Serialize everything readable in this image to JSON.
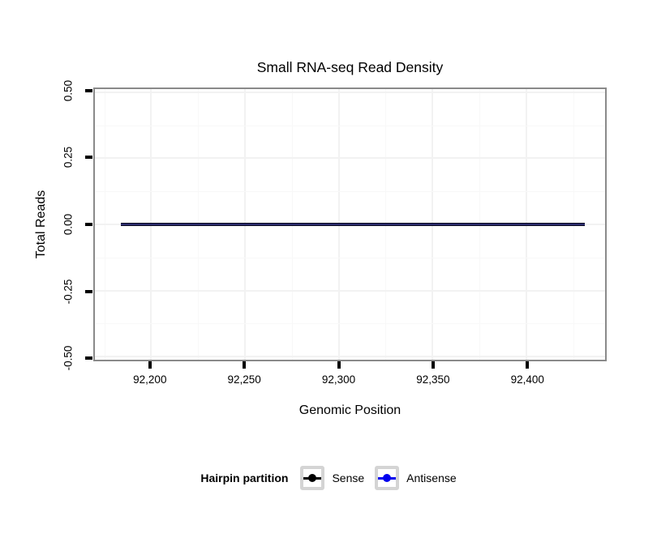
{
  "title": "Small RNA-seq Read Density",
  "chart_data": {
    "type": "line",
    "title": "Small RNA-seq Read Density",
    "xlabel": "Genomic Position",
    "ylabel": "Total Reads",
    "xlim": [
      92170,
      92442
    ],
    "ylim": [
      -0.512,
      0.512
    ],
    "x_ticks": [
      92200,
      92250,
      92300,
      92350,
      92400
    ],
    "x_tick_labels": [
      "92,200",
      "92,250",
      "92,300",
      "92,350",
      "92,400"
    ],
    "y_ticks": [
      0.5,
      0.25,
      0,
      -0.25,
      -0.5
    ],
    "y_tick_labels": [
      "0.50",
      "0.25",
      "0.00",
      "-0.25",
      "-0.50"
    ],
    "grid": {
      "major": true,
      "minor": true
    },
    "legend_position": "bottom",
    "series": [
      {
        "name": "Sense",
        "color": "#000000",
        "x": [
          92184,
          92431
        ],
        "y": [
          0,
          0
        ]
      },
      {
        "name": "Antisense",
        "color": "#0000ee",
        "x": [
          92184,
          92431
        ],
        "y": [
          0,
          0
        ]
      }
    ]
  },
  "legend": {
    "title": "Hairpin partition",
    "items": [
      {
        "label": "Sense",
        "color": "#000000"
      },
      {
        "label": "Antisense",
        "color": "#0000ee"
      }
    ]
  },
  "colors": {
    "background": "#ffffff",
    "panel_border": "#8a8a8a",
    "grid_major": "#f2f2f2",
    "grid_minor": "#f8f8f8",
    "tick": "#000000",
    "overlapped_line": "#3a3a8c",
    "legend_key_border": "#d4d4d4"
  }
}
